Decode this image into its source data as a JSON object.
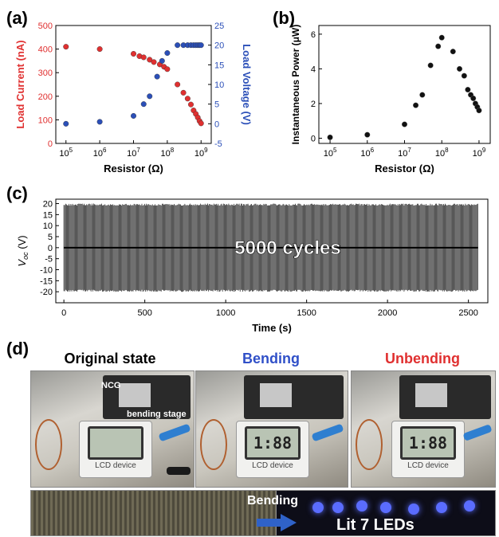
{
  "labels": {
    "a": "(a)",
    "b": "(b)",
    "c": "(c)",
    "d": "(d)"
  },
  "colors": {
    "current": "#e03030",
    "voltage": "#2b4fb8",
    "bending": "#3050c8",
    "unbending": "#e03030"
  },
  "chart_data": [
    {
      "id": "a",
      "type": "scatter",
      "xlabel": "Resistor (Ω)",
      "ylabel_left": "Load Current (nA)",
      "ylabel_right": "Load Voltage (V)",
      "xscale": "log",
      "xlim": [
        50000.0,
        2000000000.0
      ],
      "ylim_left": [
        0,
        500
      ],
      "ylim_right": [
        -5,
        25
      ],
      "xticks": [
        {
          "base": "10",
          "exp": "5",
          "v": 100000
        },
        {
          "base": "10",
          "exp": "6",
          "v": 1000000
        },
        {
          "base": "10",
          "exp": "7",
          "v": 10000000
        },
        {
          "base": "10",
          "exp": "8",
          "v": 100000000
        },
        {
          "base": "10",
          "exp": "9",
          "v": 1000000000
        }
      ],
      "yticks_left": [
        "0",
        "100",
        "200",
        "300",
        "400",
        "500"
      ],
      "yticks_right": [
        "-5",
        "0",
        "5",
        "10",
        "15",
        "20",
        "25"
      ],
      "series": [
        {
          "axis": "left",
          "x": [
            100000.0,
            1000000.0,
            10000000.0,
            15000000.0,
            20000000.0,
            30000000.0,
            40000000.0,
            60000000.0,
            80000000.0,
            100000000.0,
            200000000.0,
            300000000.0,
            400000000.0,
            500000000.0,
            600000000.0,
            700000000.0,
            800000000.0,
            900000000.0,
            1000000000.0
          ],
          "y": [
            410,
            400,
            380,
            370,
            365,
            355,
            345,
            335,
            325,
            315,
            250,
            215,
            190,
            165,
            140,
            125,
            110,
            95,
            85
          ]
        },
        {
          "axis": "right",
          "x": [
            100000.0,
            1000000.0,
            10000000.0,
            20000000.0,
            30000000.0,
            50000000.0,
            70000000.0,
            100000000.0,
            200000000.0,
            300000000.0,
            400000000.0,
            500000000.0,
            600000000.0,
            700000000.0,
            800000000.0,
            900000000.0,
            1000000000.0
          ],
          "y": [
            0,
            0.5,
            2,
            5,
            7,
            12,
            16,
            18,
            20,
            20,
            20,
            20,
            20,
            20,
            20,
            20,
            20
          ]
        }
      ]
    },
    {
      "id": "b",
      "type": "scatter",
      "xlabel": "Resistor (Ω)",
      "ylabel": "Instantaneous Power (μW)",
      "xscale": "log",
      "xlim": [
        50000.0,
        2000000000.0
      ],
      "ylim": [
        -0.3,
        6.5
      ],
      "xticks": [
        {
          "base": "10",
          "exp": "5",
          "v": 100000
        },
        {
          "base": "10",
          "exp": "6",
          "v": 1000000
        },
        {
          "base": "10",
          "exp": "7",
          "v": 10000000
        },
        {
          "base": "10",
          "exp": "8",
          "v": 100000000
        },
        {
          "base": "10",
          "exp": "9",
          "v": 1000000000
        }
      ],
      "yticks": [
        "0",
        "2",
        "4",
        "6"
      ],
      "series": [
        {
          "x": [
            100000.0,
            1000000.0,
            10000000.0,
            20000000.0,
            30000000.0,
            50000000.0,
            80000000.0,
            100000000.0,
            200000000.0,
            300000000.0,
            400000000.0,
            500000000.0,
            600000000.0,
            700000000.0,
            800000000.0,
            900000000.0,
            1000000000.0
          ],
          "y": [
            0.05,
            0.2,
            0.8,
            1.9,
            2.5,
            4.2,
            5.3,
            5.8,
            5.0,
            4.0,
            3.6,
            2.8,
            2.5,
            2.3,
            2.0,
            1.8,
            1.6
          ]
        }
      ]
    },
    {
      "id": "c",
      "type": "line",
      "title": "5000 cycles",
      "xlabel": "Time (s)",
      "ylabel": "V",
      "ylabel_sub": "oc",
      "ylabel_unit": " (V)",
      "xlim": [
        -50,
        2620
      ],
      "ylim": [
        -25,
        22
      ],
      "xticks": [
        "0",
        "500",
        "1000",
        "1500",
        "2000",
        "2500"
      ],
      "yticks": [
        "-20",
        "-15",
        "-10",
        "-5",
        "0",
        "5",
        "10",
        "15",
        "20"
      ],
      "signal": {
        "x_start": 0,
        "x_end": 2560,
        "peak_max": 20,
        "peak_min": -20
      }
    }
  ],
  "photos": {
    "captions": [
      "Original state",
      "Bending",
      "Unbending"
    ],
    "overlay_ncg": "NCG",
    "overlay_stage": "bending stage",
    "lcd_label": "LCD device",
    "lcd_digits": [
      "",
      "1:88",
      "1:88"
    ],
    "bottom_arrow_label": "Bending",
    "bottom_led_label": "Lit 7 LEDs"
  }
}
